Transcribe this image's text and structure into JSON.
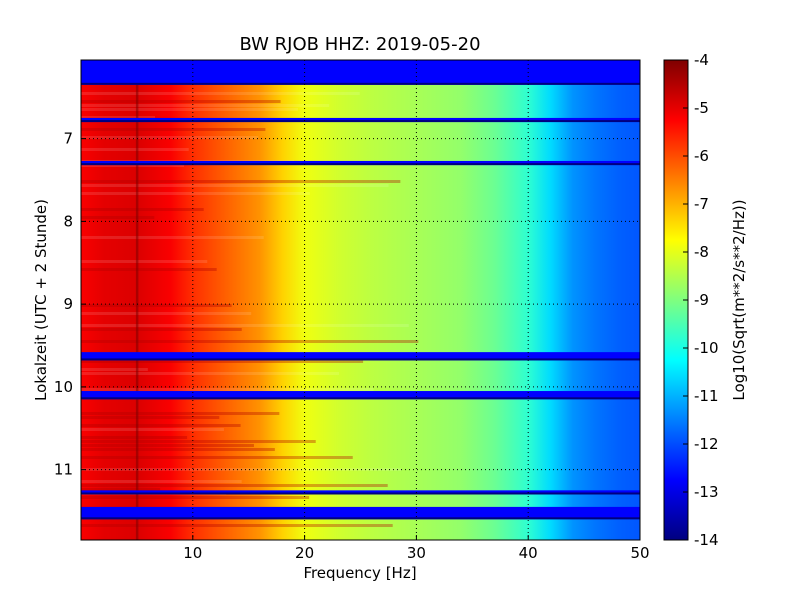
{
  "chart_data": {
    "type": "heatmap",
    "title": "BW RJOB HHZ: 2019-05-20",
    "xlabel": "Frequency [Hz]",
    "ylabel": "Lokalzeit (UTC + 2 Stunde)",
    "xlim": [
      0,
      50
    ],
    "ylim": [
      11.85,
      6.05
    ],
    "xticks": [
      "10",
      "20",
      "30",
      "40",
      "50"
    ],
    "yticks": [
      "7",
      "8",
      "9",
      "10",
      "11"
    ],
    "grid": true,
    "colorbar": {
      "label": "Log10(Sqrt(m**2/s**2/Hz))",
      "range": [
        -14,
        -4
      ],
      "ticks": [
        "-4",
        "-5",
        "-6",
        "-7",
        "-8",
        "-9",
        "-10",
        "-11",
        "-12",
        "-13",
        "-14"
      ],
      "colormap": "jet"
    },
    "spectrum_profile": {
      "frequency_hz": [
        0,
        2,
        5,
        8,
        10,
        13,
        16,
        18,
        20,
        23,
        26,
        30,
        34,
        37,
        40,
        42,
        44,
        46,
        48,
        50
      ],
      "log10_psd": [
        -5.2,
        -5.0,
        -4.9,
        -5.2,
        -5.7,
        -6.2,
        -6.7,
        -7.3,
        -7.9,
        -8.2,
        -8.4,
        -8.6,
        -8.8,
        -9.2,
        -9.8,
        -10.6,
        -11.3,
        -11.6,
        -11.8,
        -11.9
      ]
    },
    "gap_bands_hours": [
      [
        6.05,
        6.35
      ],
      [
        6.75,
        6.8
      ],
      [
        7.27,
        7.32
      ],
      [
        9.58,
        9.68
      ],
      [
        10.05,
        10.15
      ],
      [
        11.25,
        11.3
      ],
      [
        11.45,
        11.6
      ]
    ],
    "colormap_stops": [
      "#00007f",
      "#0000ff",
      "#007fff",
      "#00ffff",
      "#7fff7f",
      "#ffff00",
      "#ff7f00",
      "#ff0000",
      "#7f0000"
    ]
  }
}
